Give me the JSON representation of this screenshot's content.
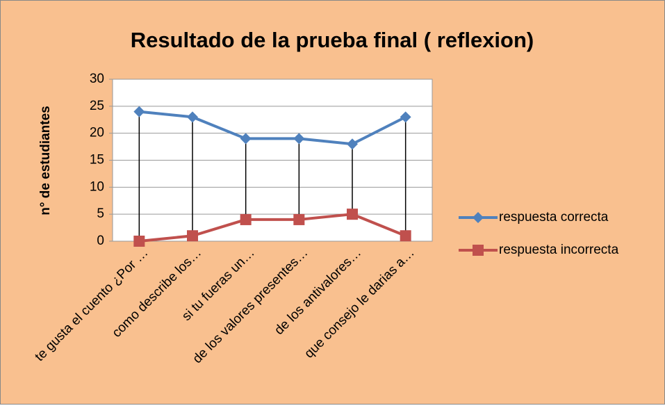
{
  "chart_data": {
    "type": "line",
    "title": "Resultado de la prueba final ( reflexion)",
    "y_label": "n° de estudiantes",
    "categories": [
      "te gusta el cuento ¿Por …",
      "como describe los…",
      "si tu fueras un…",
      "de los valores presentes…",
      "de los antivalores…",
      "que consejo le darias a…"
    ],
    "series": [
      {
        "name": "respuesta correcta",
        "color": "#4f81bd",
        "marker": "diamond",
        "values": [
          24,
          23,
          19,
          19,
          18,
          23
        ]
      },
      {
        "name": "respuesta incorrecta",
        "color": "#c0504d",
        "marker": "square",
        "values": [
          0,
          1,
          4,
          4,
          5,
          1
        ]
      }
    ],
    "ylim": [
      0,
      30
    ],
    "yticks": [
      0,
      5,
      10,
      15,
      20,
      25,
      30
    ],
    "grid": true,
    "legend": "right",
    "high_low_lines": true
  }
}
